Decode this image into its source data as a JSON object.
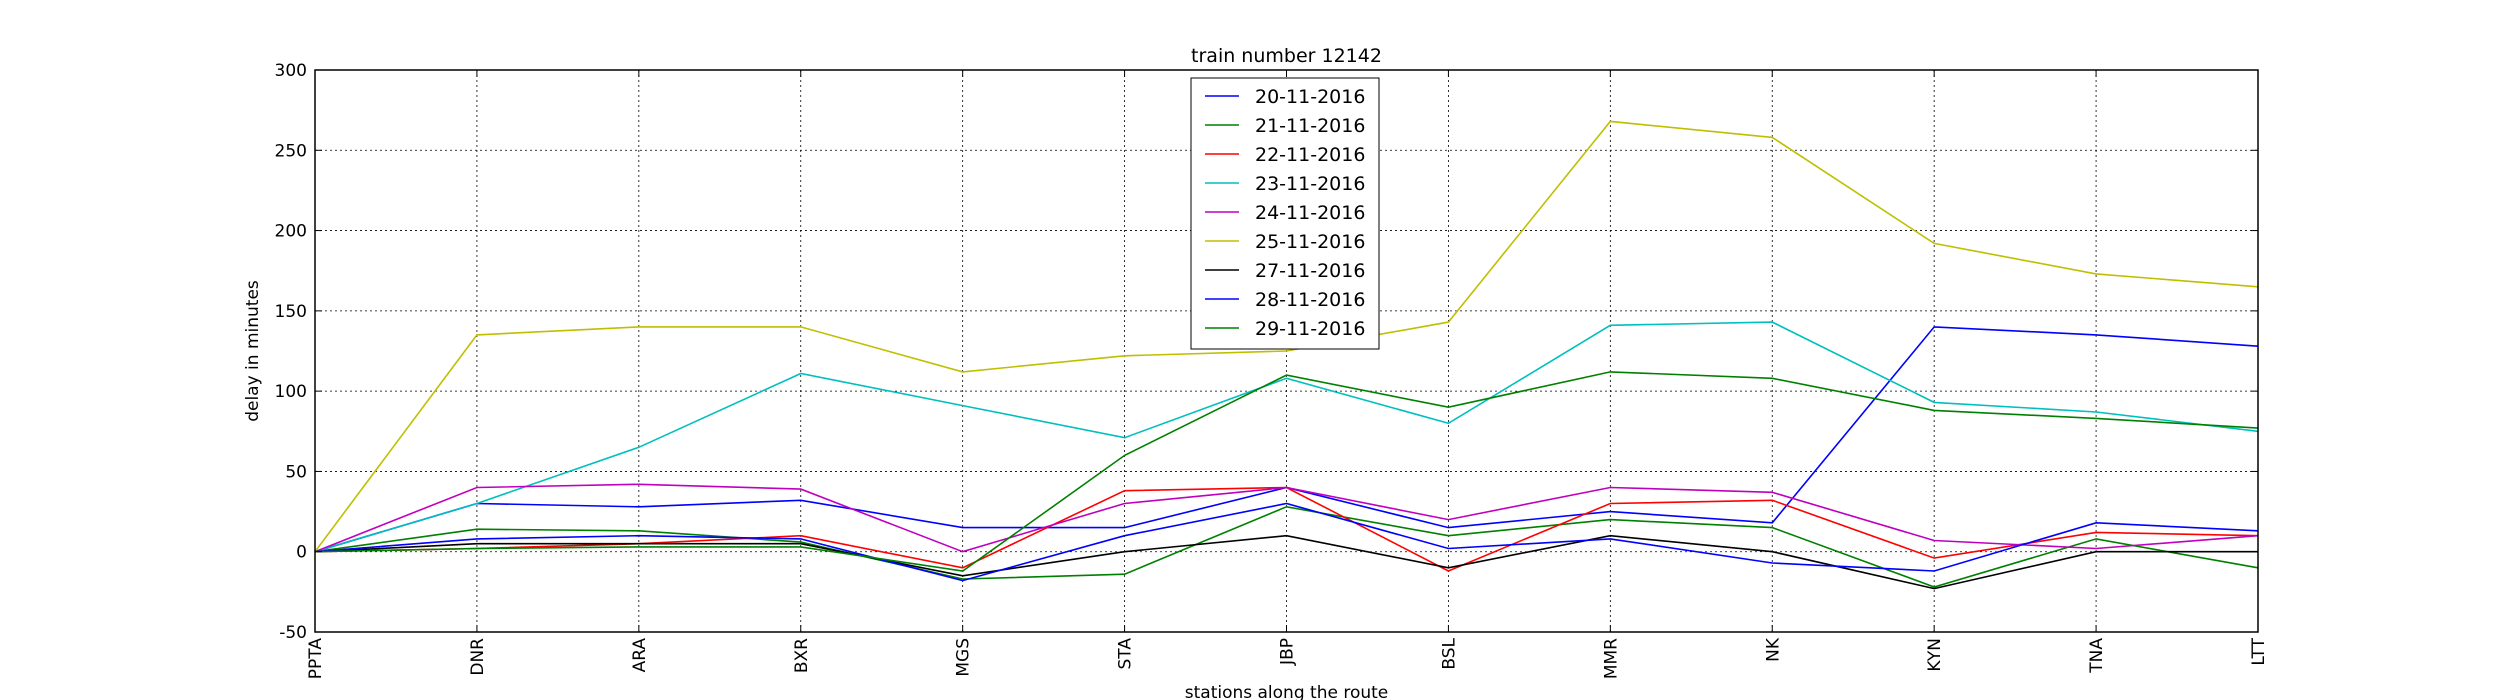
{
  "chart_data": {
    "type": "line",
    "title": "train number 12142",
    "xlabel": "stations along the route",
    "ylabel": "delay in minutes",
    "ylim": [
      -50,
      300
    ],
    "yticks": [
      "-50",
      "0",
      "50",
      "100",
      "150",
      "200",
      "250",
      "300"
    ],
    "categories": [
      "PPTA",
      "DNR",
      "ARA",
      "BXR",
      "MGS",
      "STA",
      "JBP",
      "BSL",
      "MMR",
      "NK",
      "KYN",
      "TNA",
      "LTT"
    ],
    "grid": true,
    "legend_position": "top-center",
    "series": [
      {
        "name": "20-11-2016",
        "color": "#0000ff",
        "values": [
          0,
          30,
          28,
          32,
          15,
          15,
          40,
          15,
          25,
          18,
          140,
          135,
          128
        ]
      },
      {
        "name": "21-11-2016",
        "color": "#008000",
        "values": [
          0,
          14,
          13,
          6,
          -17,
          -14,
          28,
          10,
          20,
          15,
          -22,
          8,
          -10
        ]
      },
      {
        "name": "22-11-2016",
        "color": "#ff0000",
        "values": [
          0,
          2,
          5,
          10,
          -10,
          38,
          40,
          -12,
          30,
          32,
          -4,
          12,
          10
        ]
      },
      {
        "name": "23-11-2016",
        "color": "#00bfbf",
        "values": [
          0,
          30,
          65,
          111,
          91,
          71,
          108,
          80,
          141,
          143,
          93,
          87,
          75
        ]
      },
      {
        "name": "24-11-2016",
        "color": "#bf00bf",
        "values": [
          0,
          40,
          42,
          39,
          0,
          30,
          40,
          20,
          40,
          37,
          7,
          2,
          10
        ]
      },
      {
        "name": "25-11-2016",
        "color": "#bfbf00",
        "values": [
          0,
          135,
          140,
          140,
          112,
          122,
          125,
          143,
          268,
          258,
          192,
          173,
          165
        ]
      },
      {
        "name": "27-11-2016",
        "color": "#000000",
        "values": [
          0,
          5,
          5,
          5,
          -15,
          0,
          10,
          -10,
          10,
          0,
          -23,
          0,
          0
        ]
      },
      {
        "name": "28-11-2016",
        "color": "#0000ff",
        "values": [
          0,
          8,
          10,
          8,
          -18,
          10,
          30,
          2,
          8,
          -7,
          -12,
          18,
          13
        ]
      },
      {
        "name": "29-11-2016",
        "color": "#008000",
        "values": [
          0,
          2,
          3,
          3,
          -12,
          60,
          110,
          90,
          112,
          108,
          88,
          83,
          77
        ]
      }
    ]
  }
}
